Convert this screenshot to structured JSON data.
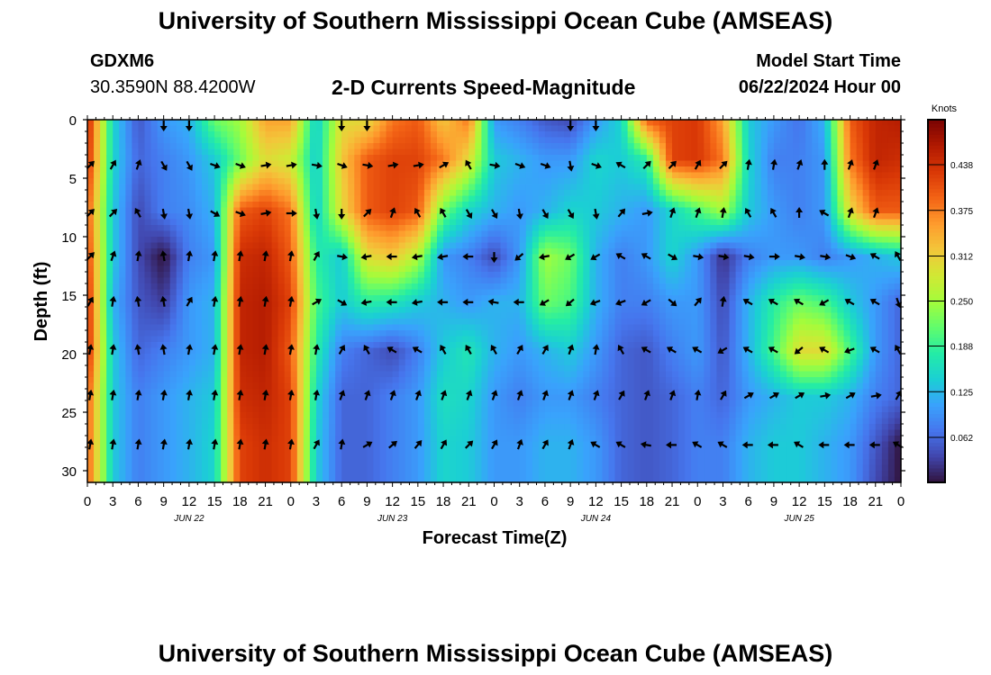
{
  "header": {
    "title": "University of Southern Mississippi Ocean Cube (AMSEAS)",
    "station": "GDXM6",
    "coords": "30.3590N  88.4200W",
    "product": "2-D Currents Speed-Magnitude",
    "start_label": "Model Start Time",
    "start_value": "06/22/2024 Hour 00"
  },
  "footer": {
    "title": "University of Southern Mississippi Ocean Cube (AMSEAS)"
  },
  "colors": {
    "scale": [
      "#30123b",
      "#4145ab",
      "#4675ed",
      "#39a2fc",
      "#1bcfd4",
      "#24eca6",
      "#61fc6c",
      "#a4fc3b",
      "#d1e834",
      "#f3c63a",
      "#fe9b2d",
      "#f36315",
      "#d93806",
      "#b11901",
      "#7a0402"
    ]
  },
  "chart_data": {
    "type": "heatmap",
    "title": "2-D Currents Speed-Magnitude",
    "xlabel": "Forecast Time(Z)",
    "ylabel": "Depth (ft)",
    "x_tick_labels": [
      "0",
      "3",
      "6",
      "9",
      "12",
      "15",
      "18",
      "21",
      "0",
      "3",
      "6",
      "9",
      "12",
      "15",
      "18",
      "21",
      "0",
      "3",
      "6",
      "9",
      "12",
      "15",
      "18",
      "21",
      "0",
      "3",
      "6",
      "9",
      "12",
      "15",
      "18",
      "21",
      "0"
    ],
    "date_labels": [
      {
        "label": "JUN 22",
        "tick_index": 4
      },
      {
        "label": "JUN 23",
        "tick_index": 12
      },
      {
        "label": "JUN 24",
        "tick_index": 20
      },
      {
        "label": "JUN 25",
        "tick_index": 28
      }
    ],
    "xlim_hours": [
      0,
      96
    ],
    "ylim_ft": [
      0,
      31
    ],
    "y_ticks": [
      0,
      5,
      10,
      15,
      20,
      25,
      30
    ],
    "y_tick_labels": [
      "0",
      "5",
      "10",
      "15",
      "20",
      "25",
      "30"
    ],
    "colorbar": {
      "label": "Knots",
      "range": [
        0,
        0.5
      ],
      "ticks": [
        0.062,
        0.125,
        0.188,
        0.25,
        0.312,
        0.375,
        0.438
      ],
      "tick_labels": [
        "0.062",
        "0.125",
        "0.188",
        "0.250",
        "0.312",
        "0.375",
        "0.438"
      ]
    },
    "hours": [
      0,
      3,
      6,
      9,
      12,
      15,
      18,
      21,
      24,
      27,
      30,
      33,
      36,
      39,
      42,
      45,
      48,
      51,
      54,
      57,
      60,
      63,
      66,
      69,
      72,
      75,
      78,
      81,
      84,
      87,
      90,
      93,
      96
    ],
    "depths": [
      0,
      3.4,
      7.8,
      11.7,
      15.6,
      19.8,
      23.7,
      27.8,
      31
    ],
    "speed_knots": [
      [
        0.45,
        0.15,
        0.05,
        0.1,
        0.12,
        0.22,
        0.25,
        0.35,
        0.35,
        0.14,
        0.3,
        0.3,
        0.38,
        0.4,
        0.32,
        0.38,
        0.1,
        0.08,
        0.05,
        0.04,
        0.1,
        0.15,
        0.4,
        0.42,
        0.43,
        0.35,
        0.14,
        0.1,
        0.07,
        0.12,
        0.4,
        0.45,
        0.46
      ],
      [
        0.44,
        0.15,
        0.06,
        0.08,
        0.1,
        0.14,
        0.22,
        0.3,
        0.28,
        0.14,
        0.32,
        0.4,
        0.42,
        0.42,
        0.38,
        0.3,
        0.14,
        0.12,
        0.1,
        0.1,
        0.15,
        0.14,
        0.18,
        0.42,
        0.43,
        0.38,
        0.15,
        0.08,
        0.08,
        0.1,
        0.38,
        0.45,
        0.44
      ],
      [
        0.4,
        0.14,
        0.04,
        0.08,
        0.09,
        0.12,
        0.4,
        0.42,
        0.38,
        0.14,
        0.3,
        0.4,
        0.42,
        0.4,
        0.22,
        0.15,
        0.12,
        0.1,
        0.12,
        0.15,
        0.14,
        0.12,
        0.1,
        0.15,
        0.2,
        0.25,
        0.14,
        0.1,
        0.08,
        0.1,
        0.3,
        0.4,
        0.4
      ],
      [
        0.42,
        0.14,
        0.04,
        0.0,
        0.08,
        0.1,
        0.44,
        0.45,
        0.4,
        0.18,
        0.14,
        0.3,
        0.32,
        0.26,
        0.1,
        0.08,
        0.04,
        0.1,
        0.25,
        0.22,
        0.12,
        0.08,
        0.1,
        0.15,
        0.1,
        0.02,
        0.08,
        0.1,
        0.1,
        0.08,
        0.1,
        0.12,
        0.14
      ],
      [
        0.44,
        0.12,
        0.05,
        0.03,
        0.1,
        0.12,
        0.45,
        0.46,
        0.42,
        0.2,
        0.14,
        0.18,
        0.17,
        0.14,
        0.12,
        0.1,
        0.12,
        0.12,
        0.22,
        0.2,
        0.12,
        0.08,
        0.08,
        0.1,
        0.1,
        0.04,
        0.12,
        0.18,
        0.22,
        0.2,
        0.14,
        0.1,
        0.06
      ],
      [
        0.44,
        0.14,
        0.06,
        0.08,
        0.1,
        0.12,
        0.45,
        0.46,
        0.4,
        0.18,
        0.08,
        0.06,
        0.04,
        0.08,
        0.14,
        0.17,
        0.12,
        0.1,
        0.12,
        0.14,
        0.1,
        0.06,
        0.05,
        0.08,
        0.1,
        0.05,
        0.12,
        0.2,
        0.3,
        0.3,
        0.2,
        0.1,
        0.06
      ],
      [
        0.4,
        0.14,
        0.08,
        0.1,
        0.12,
        0.14,
        0.44,
        0.45,
        0.42,
        0.15,
        0.06,
        0.06,
        0.08,
        0.1,
        0.16,
        0.15,
        0.1,
        0.08,
        0.1,
        0.1,
        0.08,
        0.06,
        0.05,
        0.06,
        0.08,
        0.06,
        0.1,
        0.12,
        0.14,
        0.14,
        0.12,
        0.08,
        0.06
      ],
      [
        0.4,
        0.14,
        0.08,
        0.1,
        0.12,
        0.15,
        0.42,
        0.44,
        0.42,
        0.14,
        0.06,
        0.06,
        0.08,
        0.1,
        0.15,
        0.14,
        0.1,
        0.1,
        0.12,
        0.12,
        0.1,
        0.06,
        0.05,
        0.06,
        0.08,
        0.08,
        0.12,
        0.14,
        0.14,
        0.12,
        0.1,
        0.05,
        0.0
      ],
      [
        0.4,
        0.14,
        0.08,
        0.1,
        0.12,
        0.15,
        0.42,
        0.44,
        0.42,
        0.14,
        0.06,
        0.06,
        0.08,
        0.1,
        0.15,
        0.14,
        0.1,
        0.1,
        0.12,
        0.12,
        0.1,
        0.06,
        0.05,
        0.06,
        0.08,
        0.08,
        0.12,
        0.14,
        0.14,
        0.12,
        0.1,
        0.04,
        0.0
      ]
    ],
    "arrow_depths": [
      0,
      3.9,
      8,
      11.7,
      15.6,
      19.7,
      23.6,
      27.8
    ],
    "arrow_hours": [
      0,
      3,
      6,
      9,
      12,
      15,
      18,
      21,
      24,
      27,
      30,
      33,
      36,
      39,
      42,
      45,
      48,
      51,
      54,
      57,
      60,
      63,
      66,
      69,
      72,
      75,
      78,
      81,
      84,
      87,
      90,
      93,
      96
    ],
    "arrow_direction_deg": [
      [
        null,
        null,
        null,
        180,
        180,
        null,
        null,
        null,
        null,
        null,
        180,
        180,
        null,
        null,
        null,
        null,
        null,
        null,
        null,
        180,
        180,
        null,
        null,
        null,
        null,
        null,
        null,
        null,
        null,
        null,
        null,
        null,
        null
      ],
      [
        45,
        30,
        20,
        150,
        150,
        110,
        110,
        80,
        80,
        100,
        110,
        100,
        80,
        80,
        60,
        330,
        100,
        110,
        110,
        170,
        110,
        300,
        45,
        45,
        30,
        45,
        10,
        10,
        20,
        0,
        20,
        20,
        null
      ],
      [
        45,
        45,
        330,
        170,
        170,
        120,
        110,
        80,
        90,
        170,
        180,
        45,
        20,
        330,
        330,
        150,
        150,
        170,
        150,
        150,
        170,
        40,
        80,
        20,
        20,
        10,
        330,
        330,
        0,
        300,
        20,
        20,
        null
      ],
      [
        45,
        20,
        10,
        350,
        10,
        10,
        10,
        10,
        10,
        30,
        100,
        260,
        270,
        260,
        260,
        270,
        180,
        230,
        260,
        240,
        240,
        300,
        300,
        120,
        100,
        100,
        100,
        90,
        100,
        100,
        110,
        300,
        330
      ],
      [
        30,
        10,
        350,
        350,
        30,
        10,
        10,
        10,
        10,
        60,
        120,
        260,
        270,
        260,
        270,
        270,
        280,
        270,
        240,
        230,
        250,
        250,
        240,
        130,
        40,
        10,
        300,
        300,
        300,
        240,
        300,
        300,
        160
      ],
      [
        10,
        10,
        350,
        350,
        10,
        10,
        10,
        10,
        10,
        10,
        30,
        330,
        300,
        300,
        330,
        330,
        330,
        30,
        30,
        20,
        10,
        330,
        300,
        300,
        300,
        240,
        300,
        300,
        230,
        300,
        250,
        300,
        330
      ],
      [
        10,
        10,
        10,
        10,
        10,
        10,
        10,
        10,
        10,
        10,
        20,
        20,
        20,
        20,
        20,
        20,
        20,
        20,
        20,
        20,
        20,
        30,
        20,
        20,
        10,
        30,
        60,
        60,
        60,
        80,
        60,
        80,
        30
      ],
      [
        10,
        10,
        10,
        10,
        10,
        10,
        10,
        10,
        10,
        30,
        10,
        60,
        50,
        40,
        30,
        45,
        30,
        20,
        30,
        20,
        300,
        300,
        280,
        270,
        300,
        300,
        270,
        270,
        300,
        270,
        270,
        270,
        300
      ]
    ]
  }
}
